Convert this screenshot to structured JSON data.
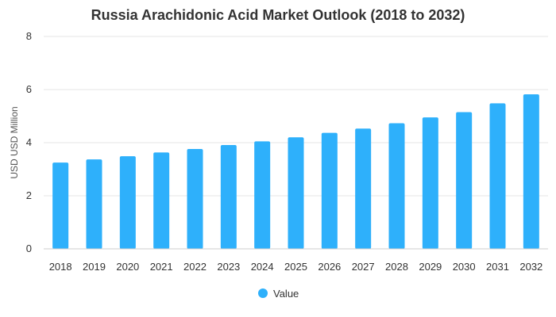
{
  "colors": {
    "series": "#2eb0fb"
  },
  "chart_data": {
    "type": "bar",
    "title": "Russia Arachidonic Acid Market Outlook (2018 to 2032)",
    "xlabel": "",
    "ylabel": "USD USD Million",
    "ylim": [
      0,
      8
    ],
    "yticks": [
      0,
      2,
      4,
      6,
      8
    ],
    "grid": true,
    "legend_position": "bottom",
    "categories": [
      "2018",
      "2019",
      "2020",
      "2021",
      "2022",
      "2023",
      "2024",
      "2025",
      "2026",
      "2027",
      "2028",
      "2029",
      "2030",
      "2031",
      "2032"
    ],
    "series": [
      {
        "name": "Value",
        "values": [
          3.25,
          3.37,
          3.49,
          3.63,
          3.76,
          3.91,
          4.05,
          4.2,
          4.37,
          4.53,
          4.73,
          4.95,
          5.15,
          5.48,
          5.82
        ]
      }
    ]
  }
}
